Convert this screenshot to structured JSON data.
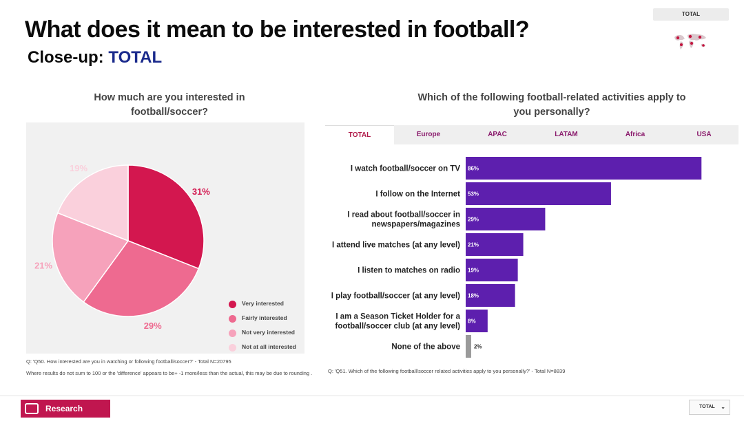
{
  "header": {
    "title": "What does it mean to be interested in football?",
    "subtitle_prefix": "Close-up:",
    "subtitle_accent": "TOTAL",
    "top_badge": "TOTAL"
  },
  "left": {
    "question": "How much are you interested in football/soccer?",
    "note1": "Q: 'Q50. How interested are you in watching or following football/soccer?' - Total N=20795",
    "note2": "Where results do not sum to 100 or the 'difference' appears to be+ -1 more/less than the actual, this may be due to rounding ."
  },
  "right": {
    "question": "Which of the following football-related activities apply to you personally?",
    "tabs": [
      "TOTAL",
      "Europe",
      "APAC",
      "LATAM",
      "Africa",
      "USA"
    ],
    "active_tab": "TOTAL",
    "note": "Q: 'Q51. Which of the following football/soccer related activities apply to you personally?' - Total N=8839"
  },
  "footer": {
    "logo_text": "Research",
    "select_value": "TOTAL"
  },
  "colors": {
    "very_interested": "#d3174f",
    "fairly_interested": "#ee6a90",
    "not_very_interested": "#f6a2bb",
    "not_at_all": "#fad0dc",
    "bar": "#5d1fae",
    "bar_none": "#9a9a9a",
    "accent": "#1a2a8c"
  },
  "chart_data": [
    {
      "type": "pie",
      "title": "How much are you interested in football/soccer?",
      "series": [
        {
          "name": "Very interested",
          "value": 31,
          "label": "31%"
        },
        {
          "name": "Fairly interested",
          "value": 29,
          "label": "29%"
        },
        {
          "name": "Not very interested",
          "value": 21,
          "label": "21%"
        },
        {
          "name": "Not at all interested",
          "value": 19,
          "label": "19%"
        }
      ],
      "legend": "right"
    },
    {
      "type": "bar",
      "orientation": "horizontal",
      "title": "Which of the following football-related activities apply to you personally?",
      "categories": [
        "I watch football/soccer on TV",
        "I follow on the Internet",
        "I read about football/soccer in newspapers/magazines",
        "I attend live matches (at any level)",
        "I listen to matches on radio",
        "I play football/soccer (at any level)",
        "I am a Season Ticket Holder for a football/soccer club (at any level)",
        "None of the above"
      ],
      "category_lines": [
        [
          "I watch football/soccer on TV"
        ],
        [
          "I follow on the Internet"
        ],
        [
          "I read about football/soccer in",
          "newspapers/magazines"
        ],
        [
          "I attend live matches (at any level)"
        ],
        [
          "I listen to matches on radio"
        ],
        [
          "I play football/soccer (at any level)"
        ],
        [
          "I am a Season Ticket Holder for a",
          "football/soccer club (at any level)"
        ],
        [
          "None of the above"
        ]
      ],
      "values": [
        86,
        53,
        29,
        21,
        19,
        18,
        8,
        2
      ],
      "labels": [
        "86%",
        "53%",
        "29%",
        "21%",
        "19%",
        "18%",
        "8%",
        "2%"
      ],
      "xlim": [
        0,
        100
      ]
    }
  ]
}
